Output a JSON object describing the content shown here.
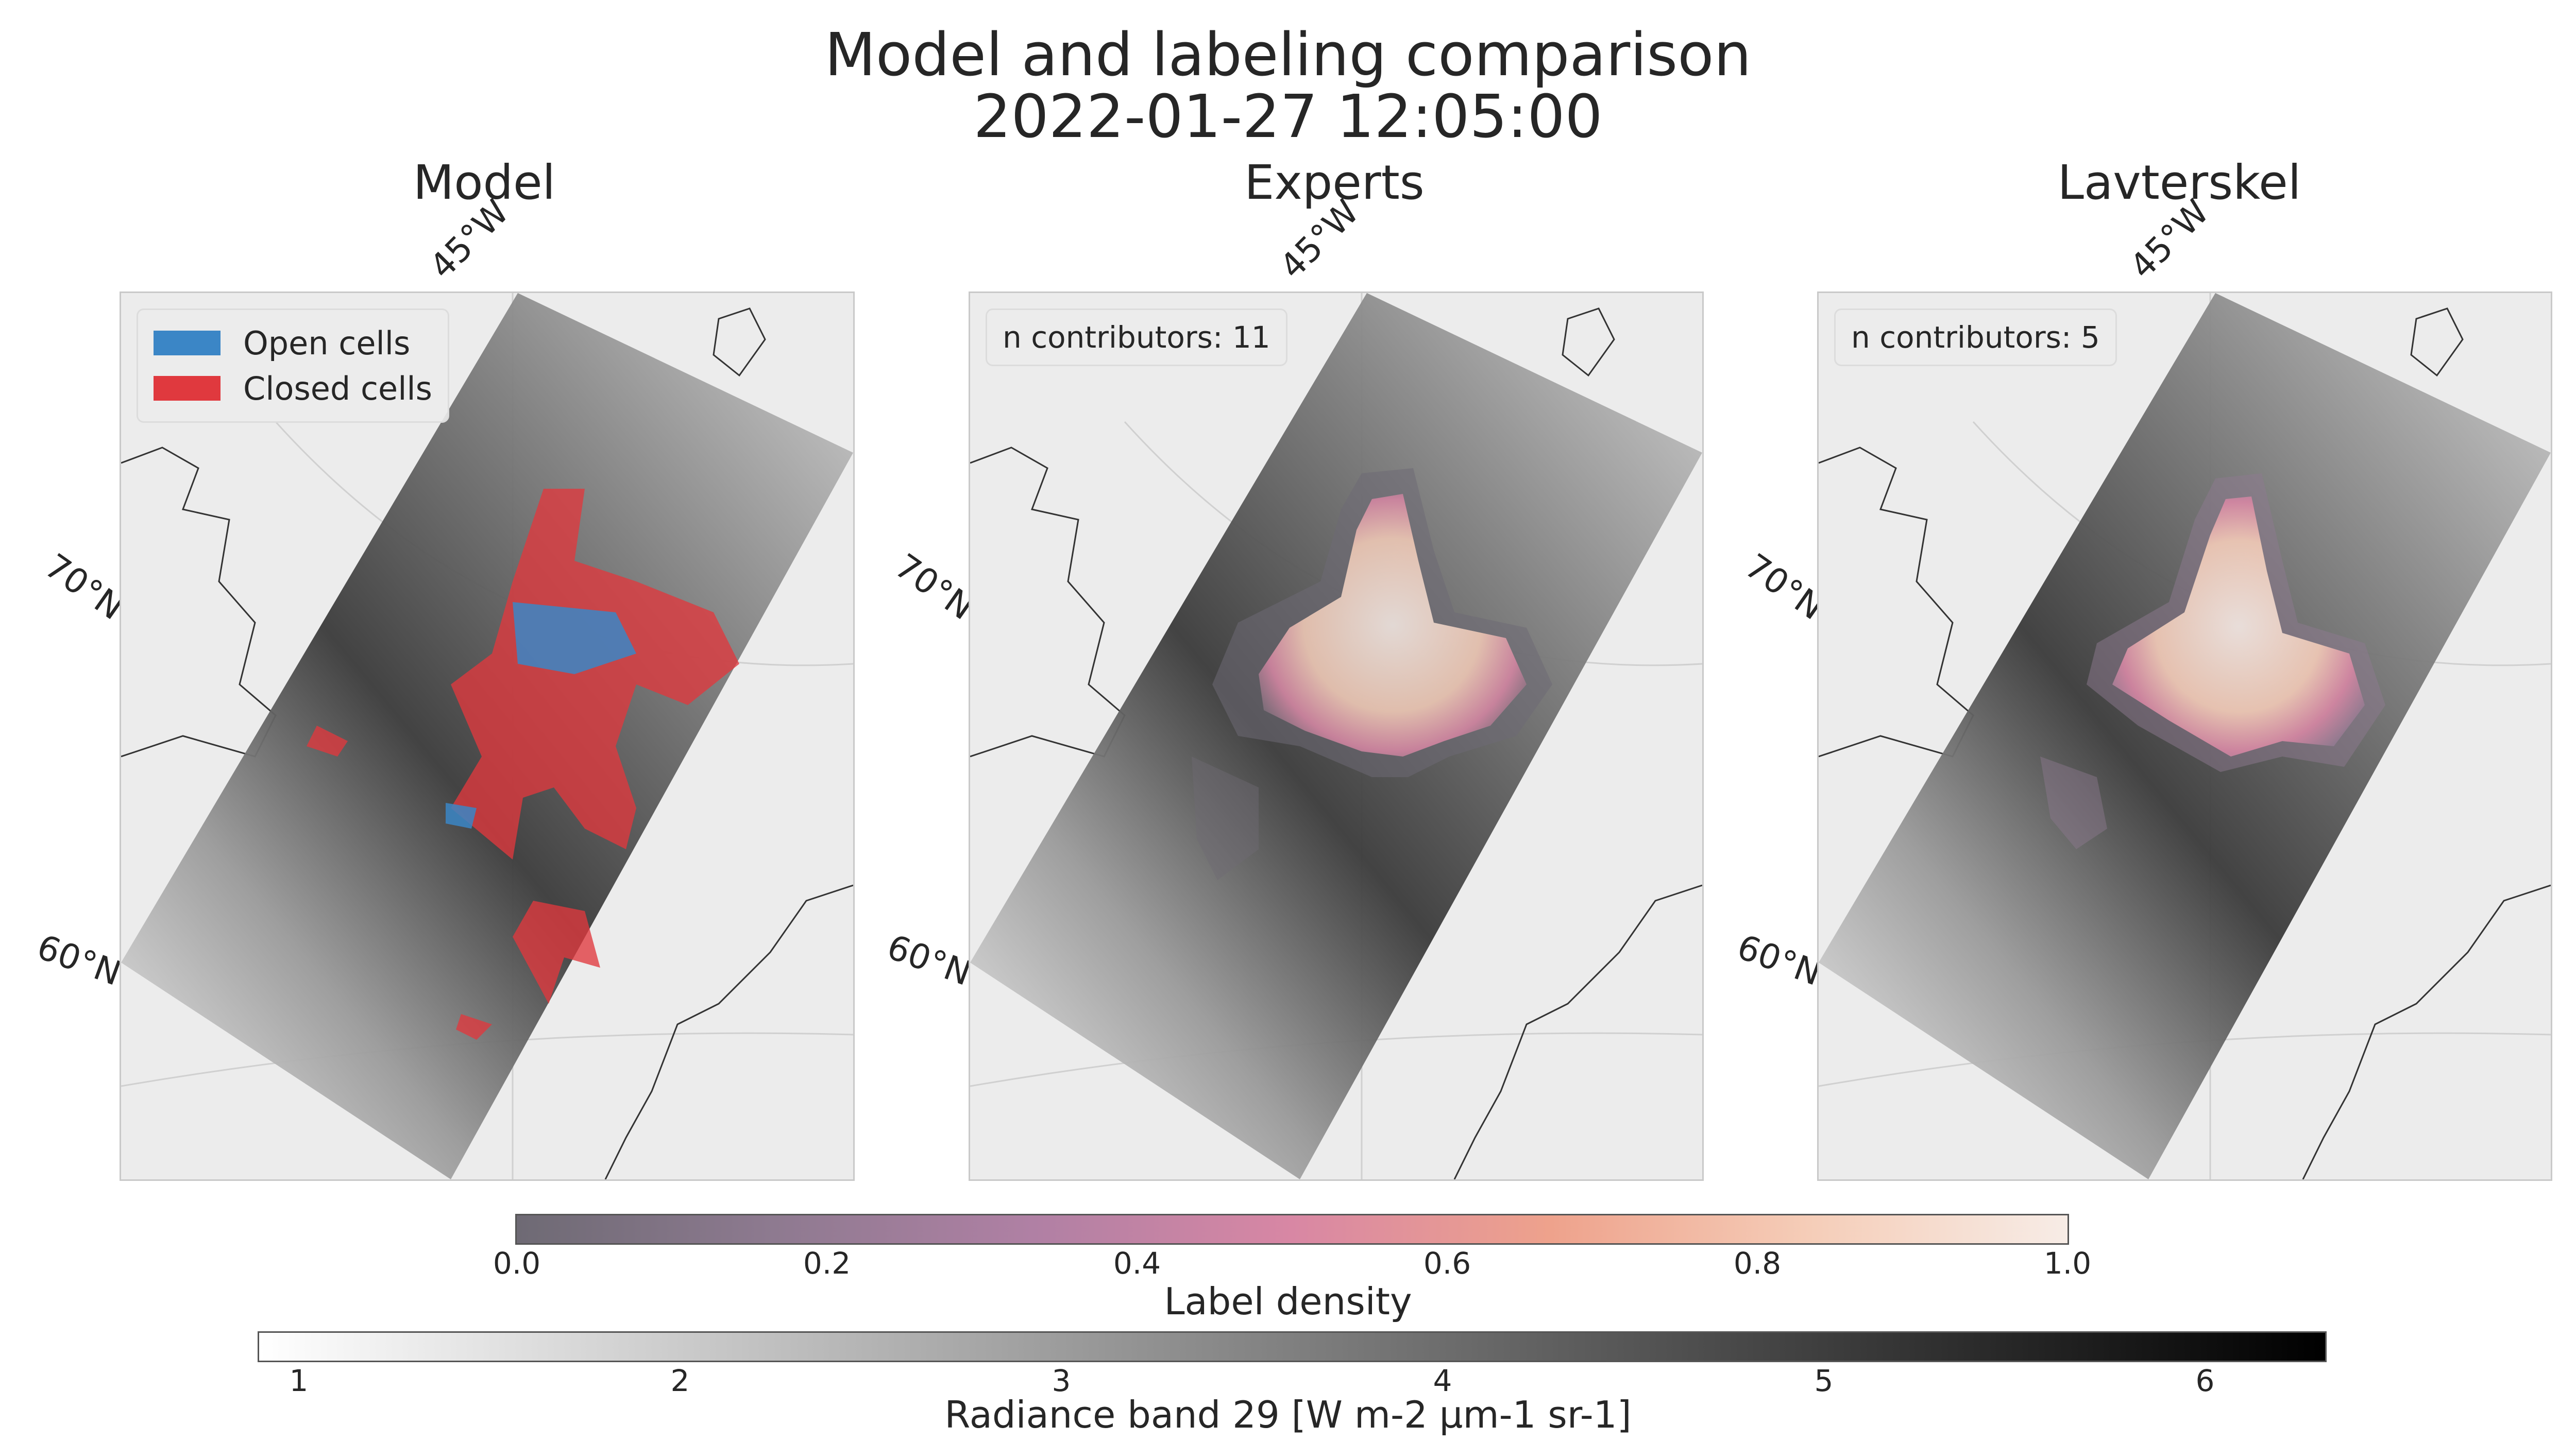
{
  "figure": {
    "title_line1": "Model and labeling comparison",
    "title_line2": "2022-01-27 12:05:00"
  },
  "panels": [
    {
      "title": "Model",
      "info": ""
    },
    {
      "title": "Experts",
      "info": "n contributors: 11"
    },
    {
      "title": "Lavterskel",
      "info": "n contributors: 5"
    }
  ],
  "gridlines": {
    "lon_label": "45°W",
    "lat_label_70": "70°N",
    "lat_label_60": "60°N"
  },
  "legend": {
    "open_label": "Open cells",
    "closed_label": "Closed cells",
    "open_color": "#3b86c6",
    "closed_color": "#e0393e"
  },
  "colorbar_density": {
    "label": "Label density",
    "ticks": [
      "0.0",
      "0.2",
      "0.4",
      "0.6",
      "0.8",
      "1.0"
    ],
    "range": [
      0,
      1
    ],
    "colors": [
      "#6e6a74",
      "#8e7a90",
      "#b080a4",
      "#d887a4",
      "#eea28c",
      "#f5cdb8",
      "#f7ece6"
    ]
  },
  "colorbar_radiance": {
    "label": "Radiance band 29 [W m-2 µm-1 sr-1]",
    "ticks": [
      "1",
      "2",
      "3",
      "4",
      "5",
      "6"
    ],
    "range": [
      0.9,
      6.3
    ],
    "colors": [
      "#ffffff",
      "#000000"
    ]
  }
}
